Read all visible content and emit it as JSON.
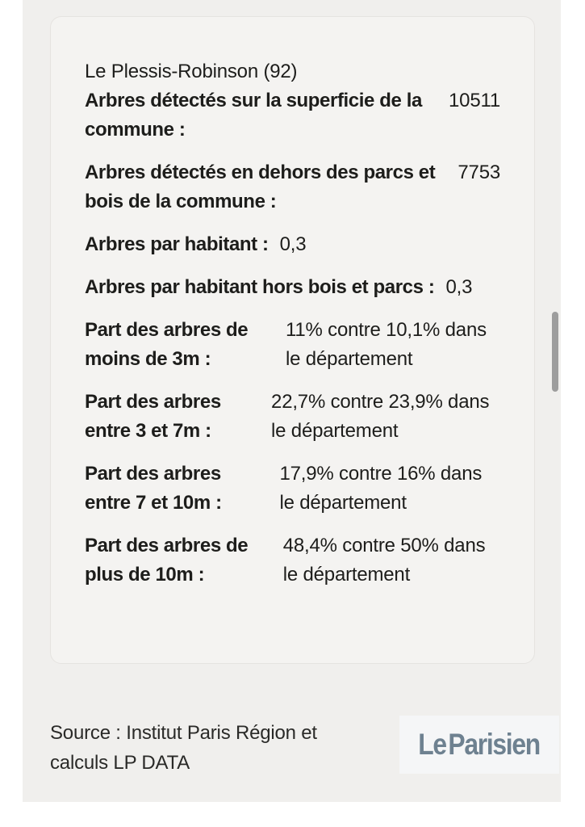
{
  "card": {
    "title": "Le Plessis-Robinson (92)",
    "rows": [
      {
        "label": "Arbres détectés sur la superficie de la commune :",
        "value": "10511"
      },
      {
        "label": "Arbres détectés en dehors des parcs et bois de la commune :",
        "value": "7753"
      },
      {
        "label": "Arbres par habitant :",
        "value": "0,3"
      },
      {
        "label": "Arbres par habitant hors bois et parcs :",
        "value": "0,3"
      },
      {
        "label": "Part des arbres de moins de 3m :",
        "value": "11% contre 10,1% dans le département"
      },
      {
        "label": "Part des arbres entre 3 et 7m :",
        "value": "22,7% contre 23,9% dans le département"
      },
      {
        "label": "Part des arbres entre 7 et 10m :",
        "value": "17,9% contre 16% dans le département"
      },
      {
        "label": "Part des arbres de plus de 10m :",
        "value": "48,4% contre 50% dans le département"
      }
    ]
  },
  "footer": {
    "source": "Source : Institut Paris Région et calculs LP DATA",
    "logo_le": "Le",
    "logo_parisien": "Parisien"
  },
  "colors": {
    "panel_bg": "#f0efed",
    "card_bg": "#f4f3f1",
    "card_border": "#e5e3e0",
    "text": "#1d1d1b",
    "logo_brand": "#6e8190",
    "scrollbar_thumb": "#9d9d9d"
  }
}
